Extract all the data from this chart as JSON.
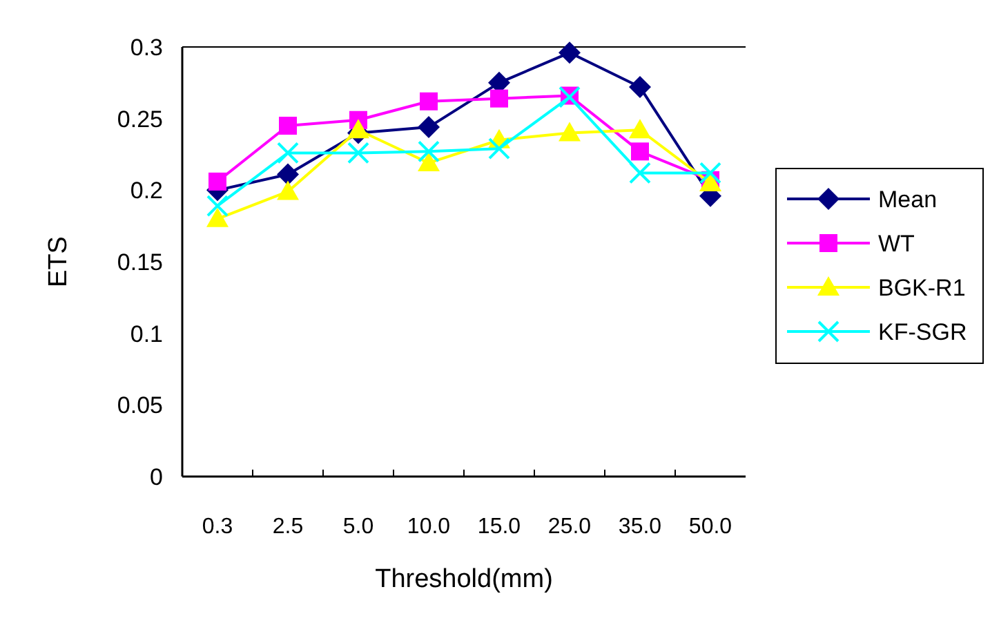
{
  "chart_data": {
    "type": "line",
    "xlabel": "Threshold(mm)",
    "ylabel": "ETS",
    "categories": [
      "0.3",
      "2.5",
      "5.0",
      "10.0",
      "15.0",
      "25.0",
      "35.0",
      "50.0"
    ],
    "ylim": [
      0,
      0.3
    ],
    "yticks": [
      0,
      0.05,
      0.1,
      0.15,
      0.2,
      0.25,
      0.3
    ],
    "grid": false,
    "legend": "right",
    "series": [
      {
        "name": "Mean",
        "color": "#000080",
        "marker": "diamond",
        "values": [
          0.2,
          0.211,
          0.24,
          0.244,
          0.275,
          0.296,
          0.272,
          0.196
        ]
      },
      {
        "name": "WT",
        "color": "#ff00ff",
        "marker": "square",
        "values": [
          0.206,
          0.245,
          0.249,
          0.262,
          0.264,
          0.266,
          0.227,
          0.207
        ]
      },
      {
        "name": "BGK-R1",
        "color": "#ffff00",
        "marker": "triangle",
        "values": [
          0.18,
          0.199,
          0.242,
          0.219,
          0.235,
          0.24,
          0.242,
          0.205
        ]
      },
      {
        "name": "KF-SGR",
        "color": "#00ffff",
        "marker": "cross",
        "values": [
          0.189,
          0.226,
          0.226,
          0.227,
          0.229,
          0.265,
          0.212,
          0.212
        ]
      }
    ]
  }
}
